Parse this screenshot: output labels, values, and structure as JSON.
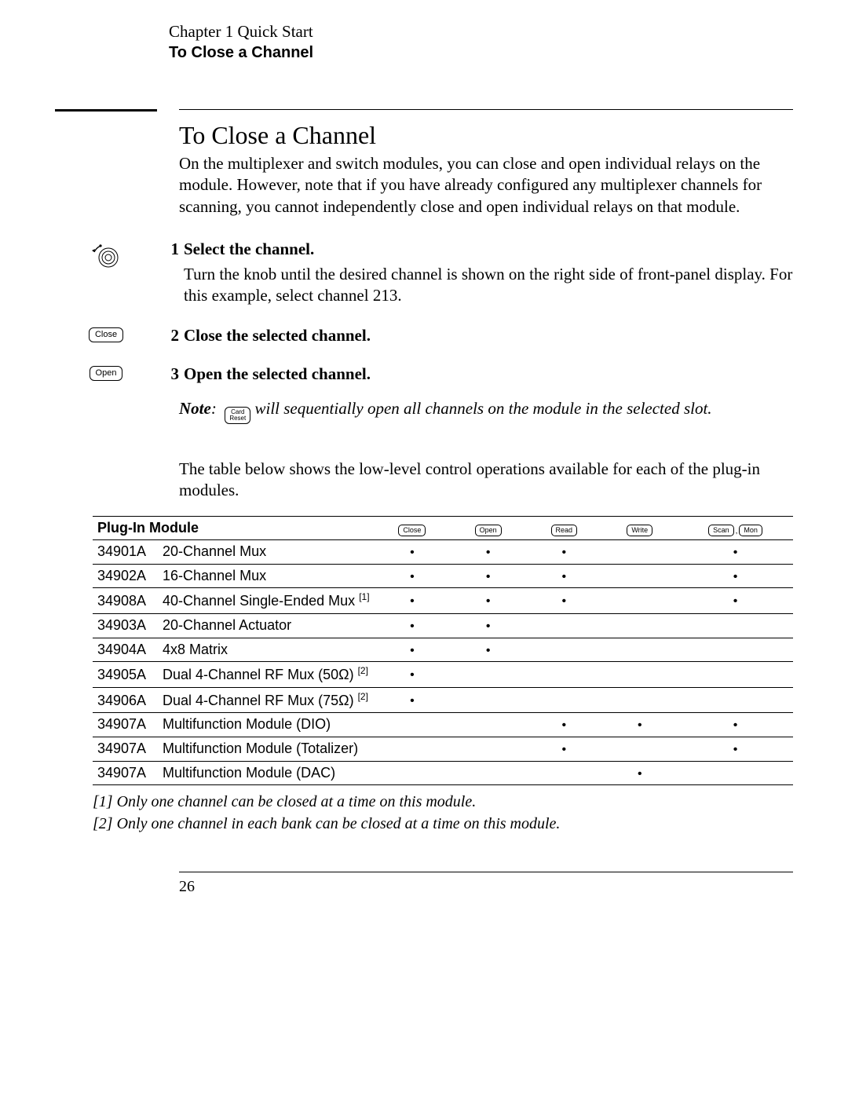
{
  "header": {
    "chapter": "Chapter 1  Quick Start",
    "section": "To Close a Channel"
  },
  "title": "To Close a Channel",
  "intro": "On the multiplexer and switch modules, you can close and open individual relays on the module. However, note that if you have already configured any multiplexer channels for scanning, you cannot independently close and open individual relays on that module.",
  "steps": [
    {
      "num": "1",
      "title": "Select the channel.",
      "body": "Turn the knob until the desired channel is shown on the right side of front-panel display. For this example, select channel 213.",
      "icon": "knob"
    },
    {
      "num": "2",
      "title": "Close the selected channel.",
      "body": "",
      "icon": "close"
    },
    {
      "num": "3",
      "title": "Open the selected channel.",
      "body": "",
      "icon": "open"
    }
  ],
  "icon_labels": {
    "close": "Close",
    "open": "Open",
    "card": "Card",
    "reset": "Reset"
  },
  "note": {
    "label": "Note",
    "text": " will sequentially open all channels on the module in the selected slot."
  },
  "table_lead": "The table below shows the low-level control operations available for each of the plug-in modules.",
  "table": {
    "col0_header": "Plug-In Module",
    "key_headers": [
      "Close",
      "Open",
      "Read",
      "Write",
      "Scan",
      "Mon"
    ],
    "rows": [
      {
        "model": "34901A",
        "desc": "20-Channel Mux",
        "sup": "",
        "ops": [
          true,
          true,
          true,
          false,
          false,
          true
        ]
      },
      {
        "model": "34902A",
        "desc": "16-Channel Mux",
        "sup": "",
        "ops": [
          true,
          true,
          true,
          false,
          false,
          true
        ]
      },
      {
        "model": "34908A",
        "desc": "40-Channel Single-Ended Mux",
        "sup": "[1]",
        "ops": [
          true,
          true,
          true,
          false,
          false,
          true
        ]
      },
      {
        "model": "34903A",
        "desc": "20-Channel Actuator",
        "sup": "",
        "ops": [
          true,
          true,
          false,
          false,
          false,
          false
        ]
      },
      {
        "model": "34904A",
        "desc": "4x8 Matrix",
        "sup": "",
        "ops": [
          true,
          true,
          false,
          false,
          false,
          false
        ]
      },
      {
        "model": "34905A",
        "desc": "Dual 4-Channel RF Mux (50Ω)",
        "sup": "[2]",
        "ops": [
          true,
          false,
          false,
          false,
          false,
          false
        ]
      },
      {
        "model": "34906A",
        "desc": "Dual 4-Channel RF Mux (75Ω)",
        "sup": "[2]",
        "ops": [
          true,
          false,
          false,
          false,
          false,
          false
        ]
      },
      {
        "model": "34907A",
        "desc": "Multifunction Module  (DIO)",
        "sup": "",
        "ops": [
          false,
          false,
          true,
          true,
          false,
          true
        ]
      },
      {
        "model": "34907A",
        "desc": "Multifunction Module  (Totalizer)",
        "sup": "",
        "ops": [
          false,
          false,
          true,
          false,
          false,
          true
        ]
      },
      {
        "model": "34907A",
        "desc": "Multifunction Module  (DAC)",
        "sup": "",
        "ops": [
          false,
          false,
          false,
          true,
          false,
          false
        ]
      }
    ]
  },
  "footnotes": [
    "[1]  Only one channel can be closed at a time on this module.",
    "[2]  Only one channel in each bank can be closed at a time on this module."
  ],
  "page_number": "26",
  "colors": {
    "text": "#000000",
    "bg": "#ffffff"
  }
}
